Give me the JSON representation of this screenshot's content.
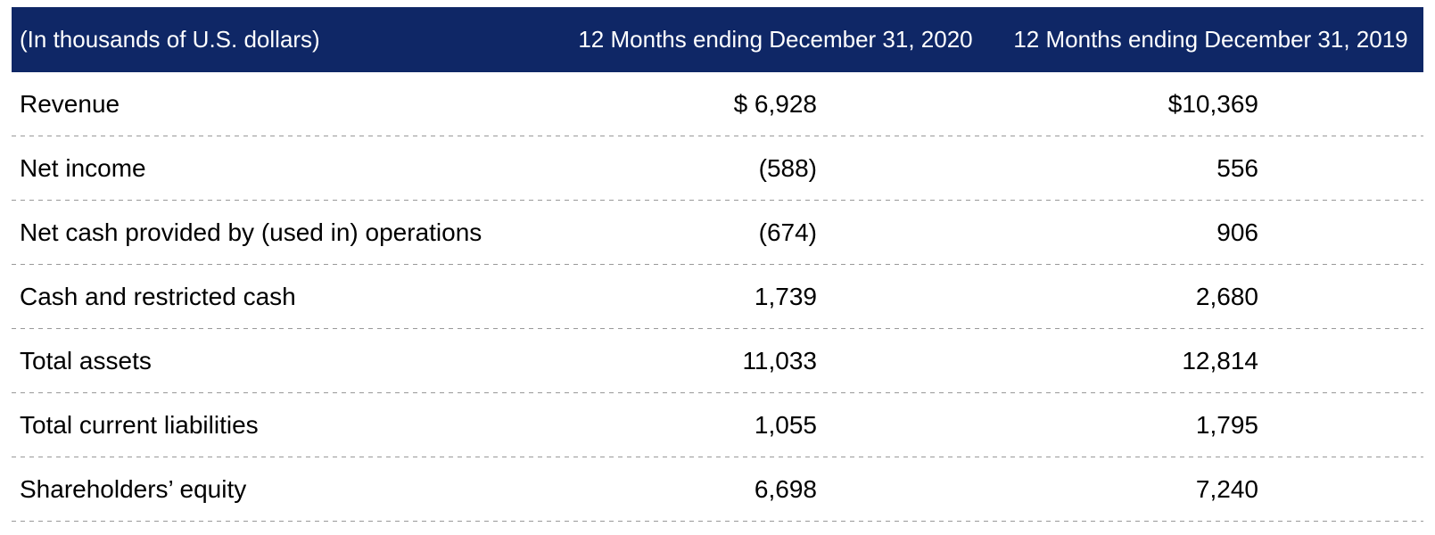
{
  "table": {
    "title": "financial-summary-table",
    "units_note": "(In thousands of U.S. dollars)",
    "columns": {
      "col_2020": "12 Months ending December 31, 2020",
      "col_2019": "12 Months ending December 31, 2019"
    },
    "rows": [
      {
        "label": "Revenue",
        "y2020": "$ 6,928",
        "y2019": "$10,369"
      },
      {
        "label": "Net income",
        "y2020": "(588)",
        "y2019": "556"
      },
      {
        "label": "Net cash provided by (used in) operations",
        "y2020": "(674)",
        "y2019": "906"
      },
      {
        "label": "Cash and restricted cash",
        "y2020": "1,739",
        "y2019": "2,680"
      },
      {
        "label": "Total assets",
        "y2020": "11,033",
        "y2019": "12,814"
      },
      {
        "label": "Total current liabilities",
        "y2020": "1,055",
        "y2019": "1,795"
      },
      {
        "label": "Shareholders’ equity",
        "y2020": "6,698",
        "y2019": "7,240"
      }
    ],
    "colors": {
      "header_bg": "#0f2766",
      "header_text": "#ffffff",
      "body_text": "#000000",
      "divider": "#999999"
    }
  }
}
